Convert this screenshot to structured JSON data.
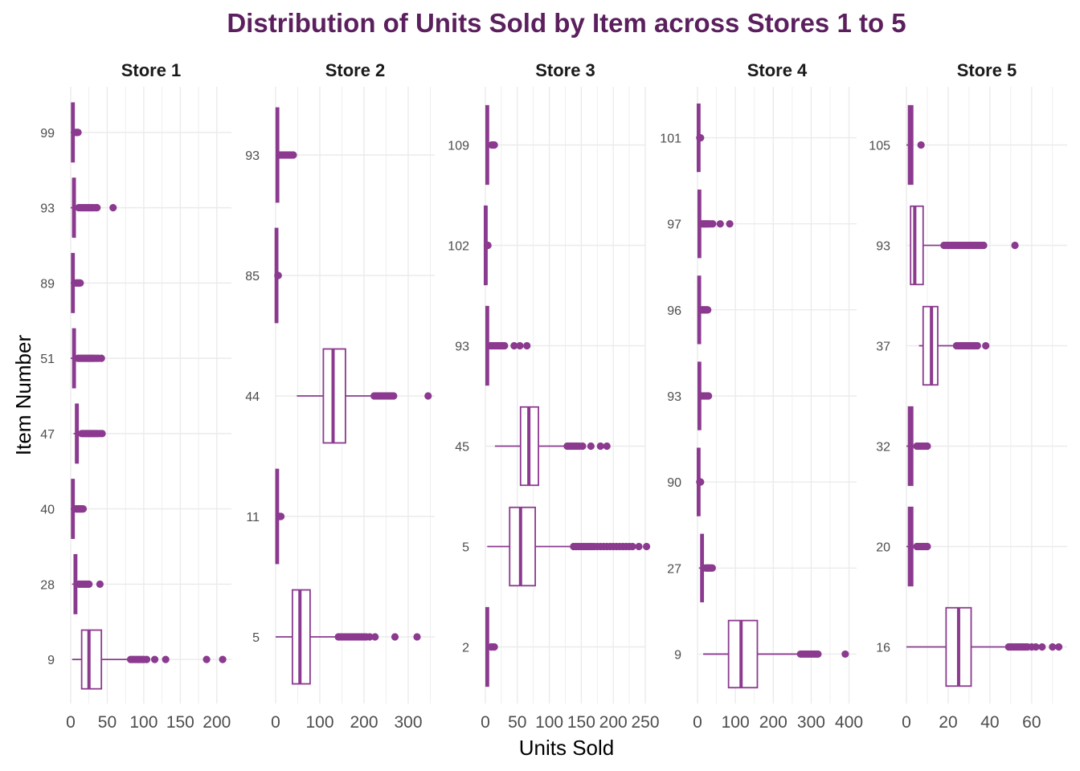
{
  "colors": {
    "accent": "#8b3a8f",
    "title": "#5b1f5e",
    "grid": "#ebebeb",
    "box_fill": "#ffffff"
  },
  "chart_data": {
    "type": "boxplot",
    "title": "Distribution of Units Sold by Item across Stores 1 to 5",
    "xlabel": "Units Sold",
    "ylabel": "Item Number",
    "grid": true,
    "legend": "none",
    "panels": [
      {
        "name": "Store 1",
        "xlim": [
          0,
          220
        ],
        "xticks": [
          0,
          50,
          100,
          150,
          200
        ],
        "xtick_labels": [
          "0",
          "50",
          "100",
          "150",
          "200"
        ],
        "items": [
          {
            "label": "99",
            "min": 0,
            "q1": 2,
            "median": 3,
            "q3": 4,
            "max": 6,
            "outliers": [
              7,
              8,
              9,
              10
            ]
          },
          {
            "label": "93",
            "min": 0,
            "q1": 3,
            "median": 4,
            "q3": 6,
            "max": 9,
            "outliers": [
              11,
              13,
              15,
              17,
              19,
              21,
              23,
              25,
              27,
              29,
              31,
              34,
              36,
              58
            ]
          },
          {
            "label": "89",
            "min": 0,
            "q1": 2,
            "median": 3,
            "q3": 4,
            "max": 6,
            "outliers": [
              7,
              8,
              9,
              10,
              11,
              12,
              13
            ]
          },
          {
            "label": "51",
            "min": 0,
            "q1": 3,
            "median": 5,
            "q3": 6,
            "max": 9,
            "outliers": [
              10,
              12,
              14,
              16,
              18,
              20,
              22,
              24,
              26,
              28,
              30,
              32,
              35,
              38,
              42
            ]
          },
          {
            "label": "47",
            "min": 4,
            "q1": 7,
            "median": 8,
            "q3": 10,
            "max": 13,
            "outliers": [
              15,
              17,
              19,
              21,
              23,
              25,
              27,
              29,
              31,
              33,
              35,
              37,
              40,
              43
            ]
          },
          {
            "label": "40",
            "min": 0,
            "q1": 2,
            "median": 3,
            "q3": 4,
            "max": 6,
            "outliers": [
              7,
              8,
              9,
              10,
              11,
              12,
              13,
              14,
              15,
              16,
              17
            ]
          },
          {
            "label": "28",
            "min": 2,
            "q1": 5,
            "median": 6,
            "q3": 8,
            "max": 10,
            "outliers": [
              11,
              13,
              15,
              17,
              19,
              21,
              23,
              25,
              40
            ]
          },
          {
            "label": "9",
            "min": 2,
            "q1": 15,
            "median": 25,
            "q3": 42,
            "max": 80,
            "outliers": [
              82,
              85,
              88,
              91,
              94,
              97,
              100,
              104,
              115,
              130,
              186,
              208
            ]
          }
        ]
      },
      {
        "name": "Store 2",
        "xlim": [
          0,
          360
        ],
        "xticks": [
          0,
          100,
          200,
          300
        ],
        "xtick_labels": [
          "0",
          "100",
          "200",
          "300"
        ],
        "items": [
          {
            "label": "93",
            "min": 0,
            "q1": 2,
            "median": 4,
            "q3": 6,
            "max": 9,
            "outliers": [
              10,
              13,
              16,
              19,
              22,
              25,
              28,
              31,
              34,
              37,
              40
            ]
          },
          {
            "label": "85",
            "min": 0,
            "q1": 1,
            "median": 2,
            "q3": 3,
            "max": 4,
            "outliers": [
              5,
              6
            ]
          },
          {
            "label": "44",
            "min": 48,
            "q1": 108,
            "median": 130,
            "q3": 158,
            "max": 220,
            "outliers": [
              223,
              227,
              231,
              235,
              239,
              243,
              247,
              251,
              255,
              259,
              263,
              267,
              345
            ]
          },
          {
            "label": "11",
            "min": 0,
            "q1": 2,
            "median": 3,
            "q3": 5,
            "max": 7,
            "outliers": [
              8,
              10,
              12
            ]
          },
          {
            "label": "5",
            "min": 0,
            "q1": 38,
            "median": 55,
            "q3": 78,
            "max": 138,
            "outliers": [
              142,
              146,
              150,
              155,
              160,
              165,
              170,
              175,
              180,
              185,
              190,
              195,
              200,
              205,
              213,
              225,
              270,
              320
            ]
          }
        ]
      },
      {
        "name": "Store 3",
        "xlim": [
          0,
          250
        ],
        "xticks": [
          0,
          50,
          100,
          150,
          200,
          250
        ],
        "xtick_labels": [
          "0",
          "50",
          "100",
          "150",
          "200",
          "250"
        ],
        "items": [
          {
            "label": "109",
            "min": 0,
            "q1": 2,
            "median": 3,
            "q3": 4,
            "max": 6,
            "outliers": [
              10,
              12,
              14
            ]
          },
          {
            "label": "102",
            "min": 0,
            "q1": 0,
            "median": 1,
            "q3": 1,
            "max": 2,
            "outliers": [
              3,
              4
            ]
          },
          {
            "label": "93",
            "min": 0,
            "q1": 2,
            "median": 3,
            "q3": 4,
            "max": 6,
            "outliers": [
              8,
              10,
              12,
              14,
              16,
              18,
              20,
              22,
              24,
              26,
              28,
              30,
              45,
              54,
              65
            ]
          },
          {
            "label": "45",
            "min": 15,
            "q1": 55,
            "median": 68,
            "q3": 83,
            "max": 125,
            "outliers": [
              128,
              131,
              134,
              137,
              140,
              143,
              147,
              152,
              165,
              180,
              190
            ]
          },
          {
            "label": "5",
            "min": 3,
            "q1": 38,
            "median": 55,
            "q3": 78,
            "max": 135,
            "outliers": [
              138,
              142,
              146,
              150,
              154,
              158,
              162,
              166,
              170,
              175,
              180,
              185,
              190,
              195,
              200,
              205,
              210,
              215,
              220,
              225,
              230,
              240,
              252
            ]
          },
          {
            "label": "2",
            "min": 0,
            "q1": 2,
            "median": 3,
            "q3": 4,
            "max": 7,
            "outliers": [
              9,
              11,
              14
            ]
          }
        ]
      },
      {
        "name": "Store 4",
        "xlim": [
          0,
          420
        ],
        "xticks": [
          0,
          100,
          200,
          300,
          400
        ],
        "xtick_labels": [
          "0",
          "100",
          "200",
          "300",
          "400"
        ],
        "items": [
          {
            "label": "101",
            "min": 0,
            "q1": 2,
            "median": 3,
            "q3": 4,
            "max": 5,
            "outliers": [
              6,
              8
            ]
          },
          {
            "label": "97",
            "min": 0,
            "q1": 3,
            "median": 5,
            "q3": 7,
            "max": 11,
            "outliers": [
              12,
              15,
              18,
              21,
              24,
              27,
              30,
              35,
              40,
              60,
              85
            ]
          },
          {
            "label": "96",
            "min": 0,
            "q1": 3,
            "median": 4,
            "q3": 6,
            "max": 9,
            "outliers": [
              11,
              13,
              15,
              17,
              19,
              21,
              23,
              25,
              27
            ]
          },
          {
            "label": "93",
            "min": 0,
            "q1": 3,
            "median": 5,
            "q3": 7,
            "max": 10,
            "outliers": [
              12,
              15,
              18,
              21,
              24,
              27,
              29
            ]
          },
          {
            "label": "90",
            "min": 0,
            "q1": 2,
            "median": 3,
            "q3": 4,
            "max": 5,
            "outliers": [
              6,
              7,
              8
            ]
          },
          {
            "label": "27",
            "min": 4,
            "q1": 9,
            "median": 12,
            "q3": 15,
            "max": 19,
            "outliers": [
              21,
              24,
              27,
              30,
              33,
              36,
              39
            ]
          },
          {
            "label": "9",
            "min": 15,
            "q1": 82,
            "median": 115,
            "q3": 158,
            "max": 270,
            "outliers": [
              272,
              276,
              280,
              284,
              288,
              292,
              296,
              300,
              304,
              308,
              312,
              318,
              390
            ]
          }
        ]
      },
      {
        "name": "Store 5",
        "xlim": [
          0,
          77
        ],
        "xticks": [
          0,
          20,
          40,
          60
        ],
        "xtick_labels": [
          "0",
          "20",
          "40",
          "60"
        ],
        "items": [
          {
            "label": "105",
            "min": 0,
            "q1": 1,
            "median": 2,
            "q3": 3,
            "max": 3,
            "outliers": [
              7
            ]
          },
          {
            "label": "93",
            "min": 2,
            "q1": 2,
            "median": 4,
            "q3": 8,
            "max": 17,
            "outliers": [
              18,
              19,
              20,
              21,
              22,
              23,
              24,
              25,
              26,
              27,
              28,
              29,
              30,
              31,
              32,
              33,
              34,
              35,
              36,
              37,
              52
            ]
          },
          {
            "label": "37",
            "min": 6,
            "q1": 8,
            "median": 12,
            "q3": 15,
            "max": 23,
            "outliers": [
              24,
              25,
              26,
              27,
              28,
              29,
              30,
              31,
              32,
              33,
              34,
              38
            ]
          },
          {
            "label": "32",
            "min": 0,
            "q1": 1,
            "median": 2,
            "q3": 3,
            "max": 4,
            "outliers": [
              5,
              6,
              7,
              8,
              9,
              10
            ]
          },
          {
            "label": "20",
            "min": 0,
            "q1": 1,
            "median": 2,
            "q3": 3,
            "max": 4,
            "outliers": [
              5,
              6,
              7,
              8,
              9,
              10
            ]
          },
          {
            "label": "16",
            "min": 0,
            "q1": 19,
            "median": 25,
            "q3": 31,
            "max": 48,
            "outliers": [
              49,
              50,
              51,
              52,
              53,
              54,
              55,
              56,
              57,
              58,
              60,
              62,
              65,
              70,
              73
            ]
          }
        ]
      }
    ]
  }
}
